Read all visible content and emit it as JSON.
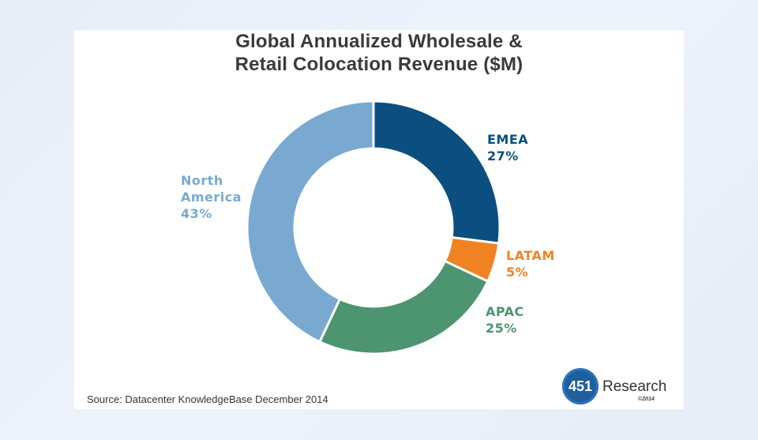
{
  "chart_data": {
    "type": "pie",
    "title_lines": [
      "Global Annualized Wholesale &",
      "Retail Colocation Revenue ($M)"
    ],
    "slices": [
      {
        "name": "EMEA",
        "label_lines": [
          "EMEA"
        ],
        "value": 27,
        "value_label": "27%",
        "color": "#0a4f80"
      },
      {
        "name": "LATAM",
        "label_lines": [
          "LATAM"
        ],
        "value": 5,
        "value_label": "5%",
        "color": "#f08321"
      },
      {
        "name": "APAC",
        "label_lines": [
          "APAC"
        ],
        "value": 25,
        "value_label": "25%",
        "color": "#4d9470"
      },
      {
        "name": "North America",
        "label_lines": [
          "North",
          "America"
        ],
        "value": 43,
        "value_label": "43%",
        "color": "#79a9d1"
      }
    ],
    "style": "donut",
    "source": "Source: Datacenter KnowledgeBase December 2014"
  },
  "brand": {
    "logo_number": "451",
    "logo_word": "Research",
    "copyright": "©2014"
  }
}
